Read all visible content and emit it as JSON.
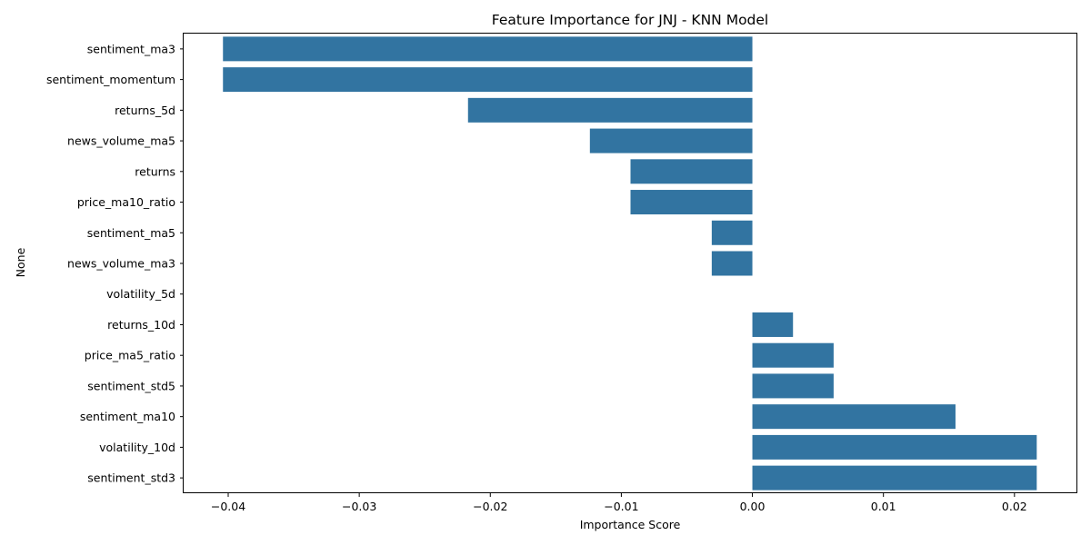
{
  "chart_data": {
    "type": "bar",
    "orientation": "horizontal",
    "title": "Feature Importance for JNJ - KNN Model",
    "xlabel": "Importance Score",
    "ylabel": "None",
    "xlim": [
      -0.0434,
      0.0248
    ],
    "x_ticks": [
      -0.04,
      -0.03,
      -0.02,
      -0.01,
      0.0,
      0.01,
      0.02
    ],
    "x_tick_labels": [
      "−0.04",
      "−0.03",
      "−0.02",
      "−0.01",
      "0.00",
      "0.01",
      "0.02"
    ],
    "grid": false,
    "bar_color": "#3274a1",
    "categories": [
      "sentiment_ma3",
      "sentiment_momentum",
      "returns_5d",
      "news_volume_ma5",
      "returns",
      "price_ma10_ratio",
      "sentiment_ma5",
      "news_volume_ma3",
      "volatility_5d",
      "returns_10d",
      "price_ma5_ratio",
      "sentiment_std5",
      "sentiment_ma10",
      "volatility_10d",
      "sentiment_std3"
    ],
    "values": [
      -0.0404,
      -0.0404,
      -0.0217,
      -0.0124,
      -0.0093,
      -0.0093,
      -0.0031,
      -0.0031,
      0.0,
      0.0031,
      0.0062,
      0.0062,
      0.0155,
      0.0217,
      0.0217
    ]
  }
}
